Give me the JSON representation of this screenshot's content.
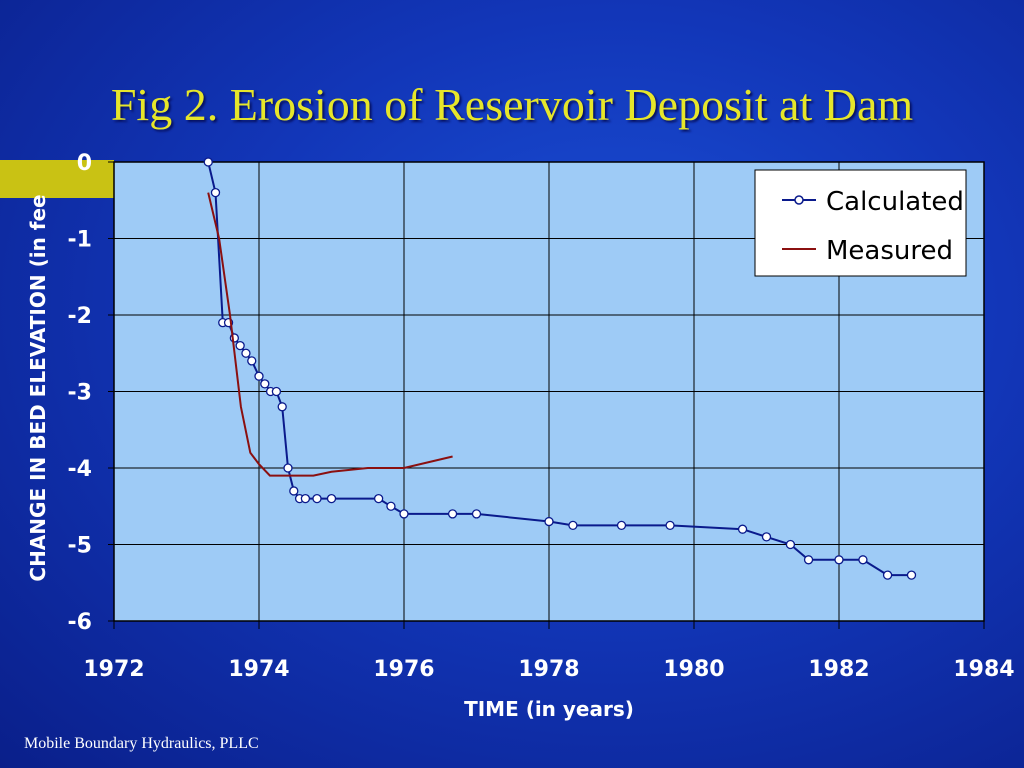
{
  "slide": {
    "title": "Fig 2.  Erosion of Reservoir Deposit at Dam",
    "footer": "Mobile Boundary Hydraulics, PLLC"
  },
  "colors": {
    "background": "#1236b8",
    "title": "#e6e62a",
    "plot_area": "#9ecbf6",
    "calculated": "#0a1a8c",
    "measured": "#8b1010"
  },
  "chart_data": {
    "type": "line",
    "title": "",
    "xlabel": "TIME (in years)",
    "ylabel": "CHANGE IN BED ELEVATION (in fee",
    "xlim": [
      1972,
      1984
    ],
    "ylim": [
      -6,
      0
    ],
    "xticks": [
      1972,
      1974,
      1976,
      1978,
      1980,
      1982,
      1984
    ],
    "yticks": [
      0,
      -1,
      -2,
      -3,
      -4,
      -5,
      -6
    ],
    "grid": true,
    "legend": "top-right",
    "series": [
      {
        "name": "Calculated",
        "marker": "circle",
        "x": [
          1973.3,
          1973.4,
          1973.5,
          1973.58,
          1973.66,
          1973.74,
          1973.82,
          1973.9,
          1974.0,
          1974.08,
          1974.16,
          1974.24,
          1974.32,
          1974.4,
          1974.48,
          1974.56,
          1974.64,
          1974.8,
          1975.0,
          1975.65,
          1975.82,
          1976.0,
          1976.67,
          1977.0,
          1978.0,
          1978.33,
          1979.0,
          1979.67,
          1980.67,
          1981.0,
          1981.33,
          1981.58,
          1982.0,
          1982.33,
          1982.67,
          1983.0
        ],
        "y": [
          0.0,
          -0.4,
          -2.1,
          -2.1,
          -2.3,
          -2.4,
          -2.5,
          -2.6,
          -2.8,
          -2.9,
          -3.0,
          -3.0,
          -3.2,
          -4.0,
          -4.3,
          -4.4,
          -4.4,
          -4.4,
          -4.4,
          -4.4,
          -4.5,
          -4.6,
          -4.6,
          -4.6,
          -4.7,
          -4.75,
          -4.75,
          -4.75,
          -4.8,
          -4.9,
          -5.0,
          -5.2,
          -5.2,
          -5.2,
          -5.4,
          -5.4
        ]
      },
      {
        "name": "Measured",
        "marker": "none",
        "x": [
          1973.3,
          1973.45,
          1973.6,
          1973.75,
          1973.88,
          1974.0,
          1974.15,
          1974.5,
          1974.75,
          1975.0,
          1975.5,
          1976.0,
          1976.67
        ],
        "y": [
          -0.4,
          -1.0,
          -2.0,
          -3.2,
          -3.8,
          -3.95,
          -4.1,
          -4.1,
          -4.1,
          -4.05,
          -4.0,
          -4.0,
          -3.85
        ]
      }
    ]
  }
}
